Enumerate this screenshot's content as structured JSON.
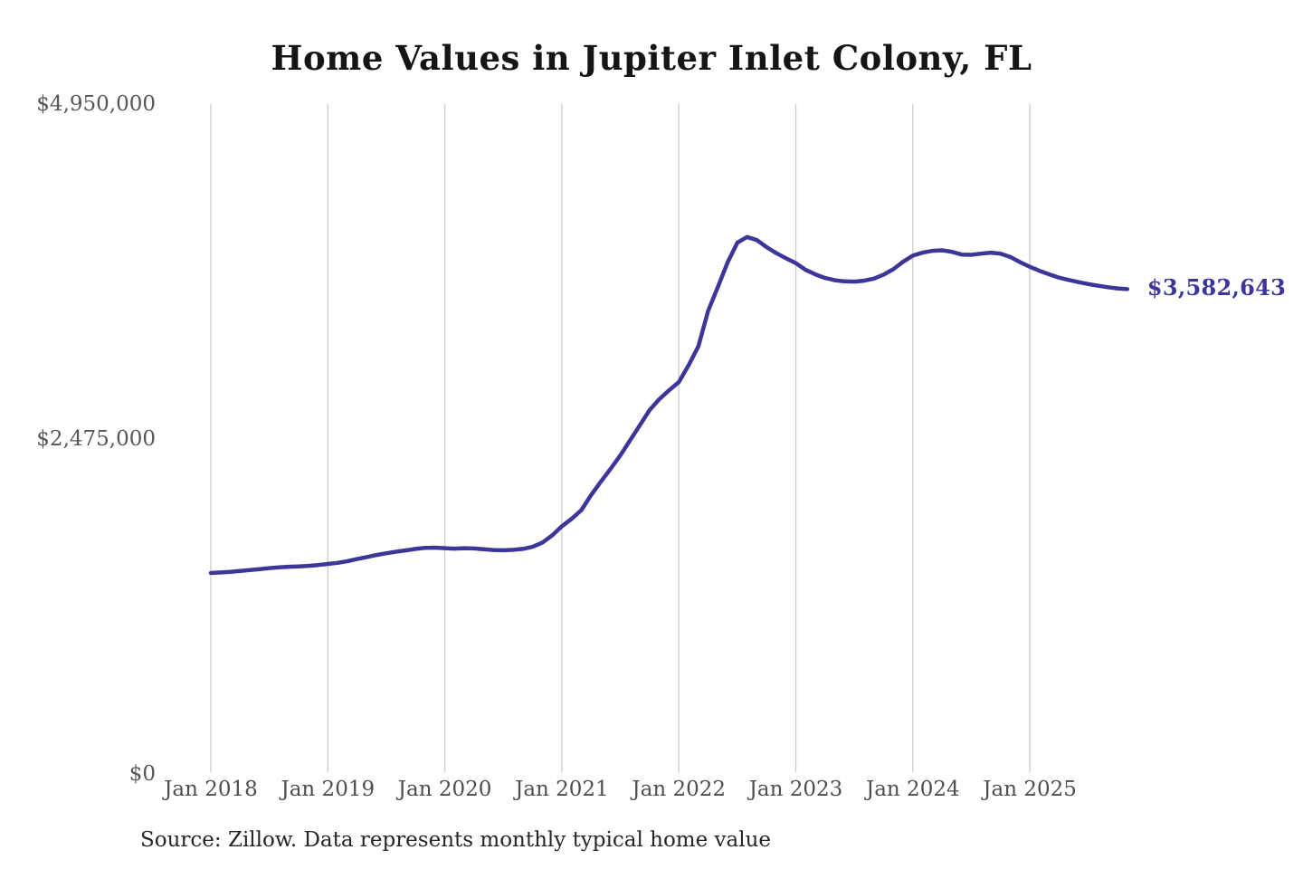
{
  "chart": {
    "source_note": "Source: Zillow. Data represents monthly typical home value",
    "line_color": "#3d3699",
    "gridline_color": "#cccccc",
    "axis_label_color": "#565656"
  },
  "chart_data": {
    "type": "line",
    "title": "Home Values in Jupiter Inlet Colony, FL",
    "xlabel": "",
    "ylabel": "",
    "ylim": [
      0,
      4950000
    ],
    "grid": "vertical-only",
    "legend": "none",
    "x_ticks": [
      "Jan 2018",
      "Jan 2019",
      "Jan 2020",
      "Jan 2021",
      "Jan 2022",
      "Jan 2023",
      "Jan 2024",
      "Jan 2025"
    ],
    "y_ticks": [
      {
        "label": "$4,950,000",
        "value": 4950000
      },
      {
        "label": "$2,475,000",
        "value": 2475000
      },
      {
        "label": "$0",
        "value": 0
      }
    ],
    "annotation": {
      "text": "$3,582,643",
      "value": 3582643,
      "position": "line-end"
    },
    "series": [
      {
        "name": "Monthly typical home value",
        "start_month": "2018-01",
        "frequency": "monthly",
        "values": [
          1485000,
          1489000,
          1494000,
          1500000,
          1507000,
          1514000,
          1521000,
          1527000,
          1531000,
          1534000,
          1538000,
          1544000,
          1552000,
          1560000,
          1572000,
          1588000,
          1603000,
          1618000,
          1631000,
          1642000,
          1652000,
          1663000,
          1671000,
          1672000,
          1668000,
          1665000,
          1668000,
          1666000,
          1660000,
          1655000,
          1653000,
          1656000,
          1663000,
          1678000,
          1710000,
          1762000,
          1830000,
          1885000,
          1950000,
          2060000,
          2160000,
          2255000,
          2354000,
          2465000,
          2577000,
          2689000,
          2770000,
          2835000,
          2896000,
          3020000,
          3160000,
          3420000,
          3598000,
          3780000,
          3926000,
          3968000,
          3945000,
          3893000,
          3848000,
          3810000,
          3775000,
          3725000,
          3692000,
          3665000,
          3648000,
          3640000,
          3638000,
          3645000,
          3660000,
          3690000,
          3730000,
          3785000,
          3830000,
          3852000,
          3866000,
          3870000,
          3858000,
          3838000,
          3836000,
          3845000,
          3852000,
          3845000,
          3820000,
          3782000,
          3748000,
          3718000,
          3692000,
          3668000,
          3650000,
          3634000,
          3620000,
          3608000,
          3597000,
          3588000,
          3582643
        ]
      }
    ]
  }
}
